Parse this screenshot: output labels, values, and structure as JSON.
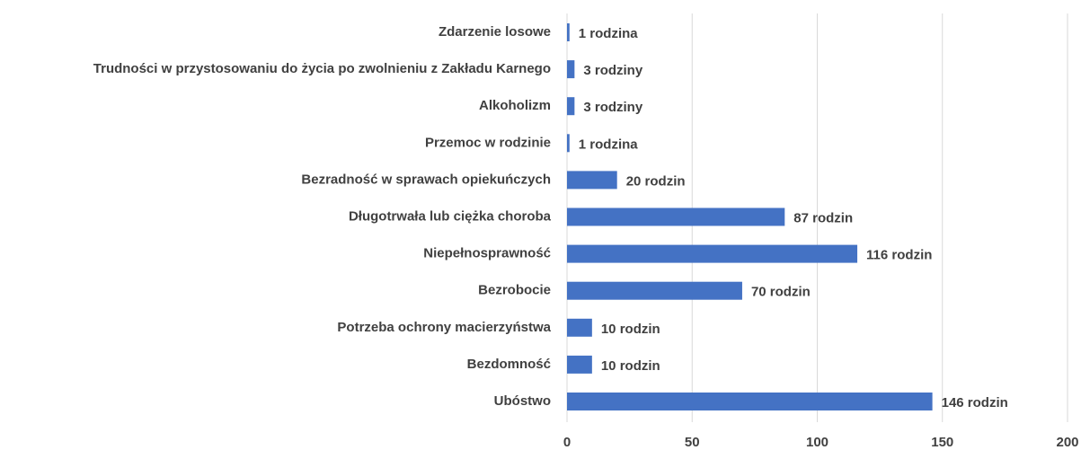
{
  "chart_data": {
    "type": "barh",
    "categories": [
      "Zdarzenie losowe",
      "Trudności w przystosowaniu do życia po zwolnieniu z Zakładu Karnego",
      "Alkoholizm",
      "Przemoc w rodzinie",
      "Bezradność w sprawach opiekuńczych",
      "Długotrwała lub ciężka choroba",
      "Niepełnosprawność",
      "Bezrobocie",
      "Potrzeba ochrony macierzyństwa",
      "Bezdomność",
      "Ubóstwo"
    ],
    "values": [
      1,
      3,
      3,
      1,
      20,
      87,
      116,
      70,
      10,
      10,
      146
    ],
    "value_labels": [
      "1 rodzina",
      "3 rodziny",
      "3 rodziny",
      "1 rodzina",
      "20 rodzin",
      "87 rodzin",
      "116 rodzin",
      "70 rodzin",
      "10 rodzin",
      "10 rodzin",
      "146 rodzin"
    ],
    "color": "#4472c4",
    "xlim": [
      0,
      200
    ],
    "xticks": [
      0,
      50,
      100,
      150,
      200
    ],
    "grid": true
  }
}
